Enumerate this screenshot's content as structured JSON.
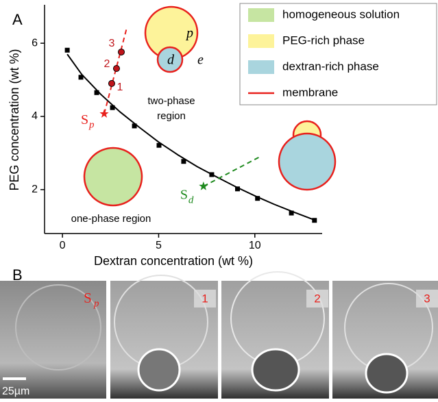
{
  "chart_data": {
    "type": "scatter",
    "panel_label": "A",
    "x_label": "Dextran concentration (wt %)",
    "y_label": "PEG  concentration (wt %)",
    "xlim": [
      -0.93,
      13.5
    ],
    "ylim": [
      0.8,
      7.05
    ],
    "xticks": [
      0,
      5,
      10
    ],
    "yticks": [
      2,
      4,
      6
    ],
    "binodal": {
      "color": "#000000",
      "x": [
        0.25,
        0.96,
        1.78,
        2.6,
        3.74,
        5.02,
        6.3,
        7.76,
        9.1,
        10.14,
        11.9,
        13.1
      ],
      "y": [
        5.81,
        5.07,
        4.65,
        4.24,
        3.74,
        3.21,
        2.77,
        2.41,
        2.02,
        1.76,
        1.36,
        1.16
      ]
    },
    "fit": {
      "color": "#000000",
      "x": [
        0.25,
        1,
        2,
        3,
        4,
        5,
        6,
        7,
        8,
        9,
        10,
        11,
        12,
        13.1
      ],
      "y": [
        5.7,
        5.15,
        4.6,
        4.12,
        3.7,
        3.3,
        2.95,
        2.63,
        2.35,
        2.08,
        1.83,
        1.6,
        1.39,
        1.17
      ]
    },
    "tie_lines": [
      {
        "color": "#e8201c",
        "x": [
          2.17,
          3.35
        ],
        "y": [
          4.07,
          6.43
        ]
      },
      {
        "color": "#1e8a1e",
        "x": [
          7.33,
          10.2
        ],
        "y": [
          2.09,
          2.88
        ]
      }
    ],
    "samples": {
      "color": "#c0141a",
      "x": [
        2.56,
        2.81,
        3.06
      ],
      "y": [
        4.9,
        5.31,
        5.76
      ],
      "labels": [
        "1",
        "2",
        "3"
      ]
    },
    "stars": [
      {
        "color": "#e8201c",
        "x": 2.17,
        "y": 4.07,
        "label": "S",
        "sub": "p"
      },
      {
        "color": "#1e8a1e",
        "x": 7.33,
        "y": 2.09,
        "label": "S",
        "sub": "d"
      }
    ],
    "two_phase_region": [
      "two-phase",
      "region"
    ],
    "one_phase_region": "one-phase region",
    "diagram_labels": [
      "p",
      "d",
      "e"
    ],
    "legend": {
      "position": "top-right",
      "entries": [
        {
          "label": "homogeneous solution",
          "color": "#c6e5a2",
          "kind": "patch"
        },
        {
          "label": "PEG-rich phase",
          "color": "#fdf39a",
          "kind": "patch"
        },
        {
          "label": "dextran-rich phase",
          "color": "#a9d5de",
          "kind": "patch"
        },
        {
          "label": "membrane",
          "color": "#e8201c",
          "kind": "line"
        }
      ]
    }
  },
  "panel_b": {
    "label": "B",
    "scale_bar": "25µm",
    "images": [
      {
        "label": "S",
        "sub": "p"
      },
      {
        "label": "1"
      },
      {
        "label": "2"
      },
      {
        "label": "3"
      }
    ]
  }
}
